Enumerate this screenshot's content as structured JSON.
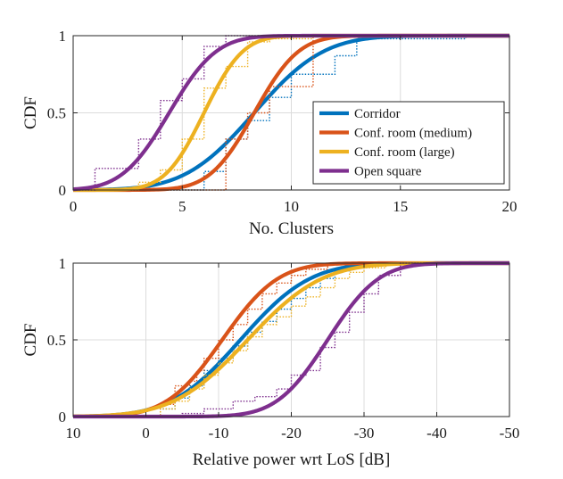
{
  "colors": {
    "Corridor": "#0072BD",
    "Conf. room (medium)": "#D95319",
    "Conf. room (large)": "#EDB120",
    "Open square": "#7E2F8E"
  },
  "chart_data": [
    {
      "type": "line",
      "xlabel": "No. Clusters",
      "ylabel": "CDF",
      "xlim": [
        0,
        20
      ],
      "ylim": [
        0,
        1
      ],
      "xticks": [
        0,
        5,
        10,
        15,
        20
      ],
      "xtick_labels": [
        "0",
        "5",
        "10",
        "15",
        "20"
      ],
      "yticks": [
        0,
        0.5,
        1
      ],
      "ytick_labels": [
        "0",
        "0.5",
        "1"
      ],
      "grid": true,
      "legend": "lower-right",
      "series": [
        {
          "name": "Corridor",
          "fit": {
            "kind": "normal",
            "mu": 8.3,
            "sigma": 2.5
          },
          "empirical": {
            "x": [
              6,
              7,
              8,
              9,
              10,
              12,
              13,
              18
            ],
            "y": [
              0.12,
              0.33,
              0.45,
              0.6,
              0.75,
              0.87,
              0.98,
              1.0
            ]
          }
        },
        {
          "name": "Conf. room (medium)",
          "fit": {
            "kind": "normal",
            "mu": 8.3,
            "sigma": 1.6
          },
          "empirical": {
            "x": [
              7,
              8,
              9,
              11
            ],
            "y": [
              0.33,
              0.5,
              0.67,
              1.0
            ]
          }
        },
        {
          "name": "Conf. room (large)",
          "fit": {
            "kind": "normal",
            "mu": 6.0,
            "sigma": 1.4
          },
          "empirical": {
            "x": [
              3,
              4,
              5,
              6,
              7,
              8,
              9,
              11
            ],
            "y": [
              0.05,
              0.13,
              0.33,
              0.66,
              0.8,
              0.96,
              0.98,
              1.0
            ]
          }
        },
        {
          "name": "Open square",
          "fit": {
            "kind": "normal",
            "mu": 4.4,
            "sigma": 1.7
          },
          "empirical": {
            "x": [
              1,
              2,
              3,
              4,
              5,
              6,
              7
            ],
            "y": [
              0.14,
              0.14,
              0.33,
              0.58,
              0.72,
              0.93,
              1.0
            ]
          }
        }
      ]
    },
    {
      "type": "line",
      "xlabel": "Relative power wrt LoS [dB]",
      "ylabel": "CDF",
      "xlim": [
        10,
        -50
      ],
      "ylim": [
        0,
        1
      ],
      "xticks": [
        10,
        0,
        -10,
        -20,
        -30,
        -40,
        -50
      ],
      "xtick_labels": [
        "10",
        "0",
        "-10",
        "-20",
        "-30",
        "-40",
        "-50"
      ],
      "yticks": [
        0,
        0.5,
        1
      ],
      "ytick_labels": [
        "0",
        "0.5",
        "1"
      ],
      "grid": true,
      "series": [
        {
          "name": "Corridor",
          "fit": {
            "kind": "normal",
            "mu": -13,
            "sigma": 7.5
          },
          "empirical": {
            "x": [
              -2,
              -4,
              -6,
              -8,
              -10,
              -12,
              -14,
              -16,
              -18,
              -20,
              -22,
              -24,
              -26,
              -28,
              -30
            ],
            "y": [
              0.05,
              0.12,
              0.2,
              0.3,
              0.38,
              0.46,
              0.55,
              0.62,
              0.7,
              0.77,
              0.84,
              0.9,
              0.95,
              0.98,
              1.0
            ]
          }
        },
        {
          "name": "Conf. room (medium)",
          "fit": {
            "kind": "normal",
            "mu": -10.5,
            "sigma": 6.0
          },
          "empirical": {
            "x": [
              -2,
              -4,
              -6,
              -7,
              -8,
              -10,
              -12,
              -14,
              -16,
              -18,
              -20,
              -22,
              -25,
              -28
            ],
            "y": [
              0.08,
              0.2,
              0.23,
              0.3,
              0.38,
              0.5,
              0.6,
              0.7,
              0.8,
              0.87,
              0.92,
              0.96,
              0.99,
              1.0
            ]
          }
        },
        {
          "name": "Conf. room (large)",
          "fit": {
            "kind": "normal",
            "mu": -14,
            "sigma": 8.0
          },
          "empirical": {
            "x": [
              -2,
              -4,
              -6,
              -8,
              -10,
              -12,
              -14,
              -16,
              -18,
              -20,
              -22,
              -24,
              -26,
              -28,
              -30,
              -33,
              -36
            ],
            "y": [
              0.05,
              0.1,
              0.18,
              0.27,
              0.35,
              0.43,
              0.52,
              0.6,
              0.65,
              0.72,
              0.78,
              0.84,
              0.9,
              0.94,
              0.97,
              0.99,
              1.0
            ]
          }
        },
        {
          "name": "Open square",
          "fit": {
            "kind": "normal",
            "mu": -25,
            "sigma": 5.5
          },
          "empirical": {
            "x": [
              -5,
              -8,
              -12,
              -15,
              -18,
              -20,
              -22,
              -24,
              -26,
              -28,
              -30,
              -32,
              -35
            ],
            "y": [
              0.02,
              0.05,
              0.1,
              0.13,
              0.18,
              0.27,
              0.3,
              0.45,
              0.55,
              0.68,
              0.8,
              0.92,
              1.0
            ]
          }
        }
      ]
    }
  ]
}
